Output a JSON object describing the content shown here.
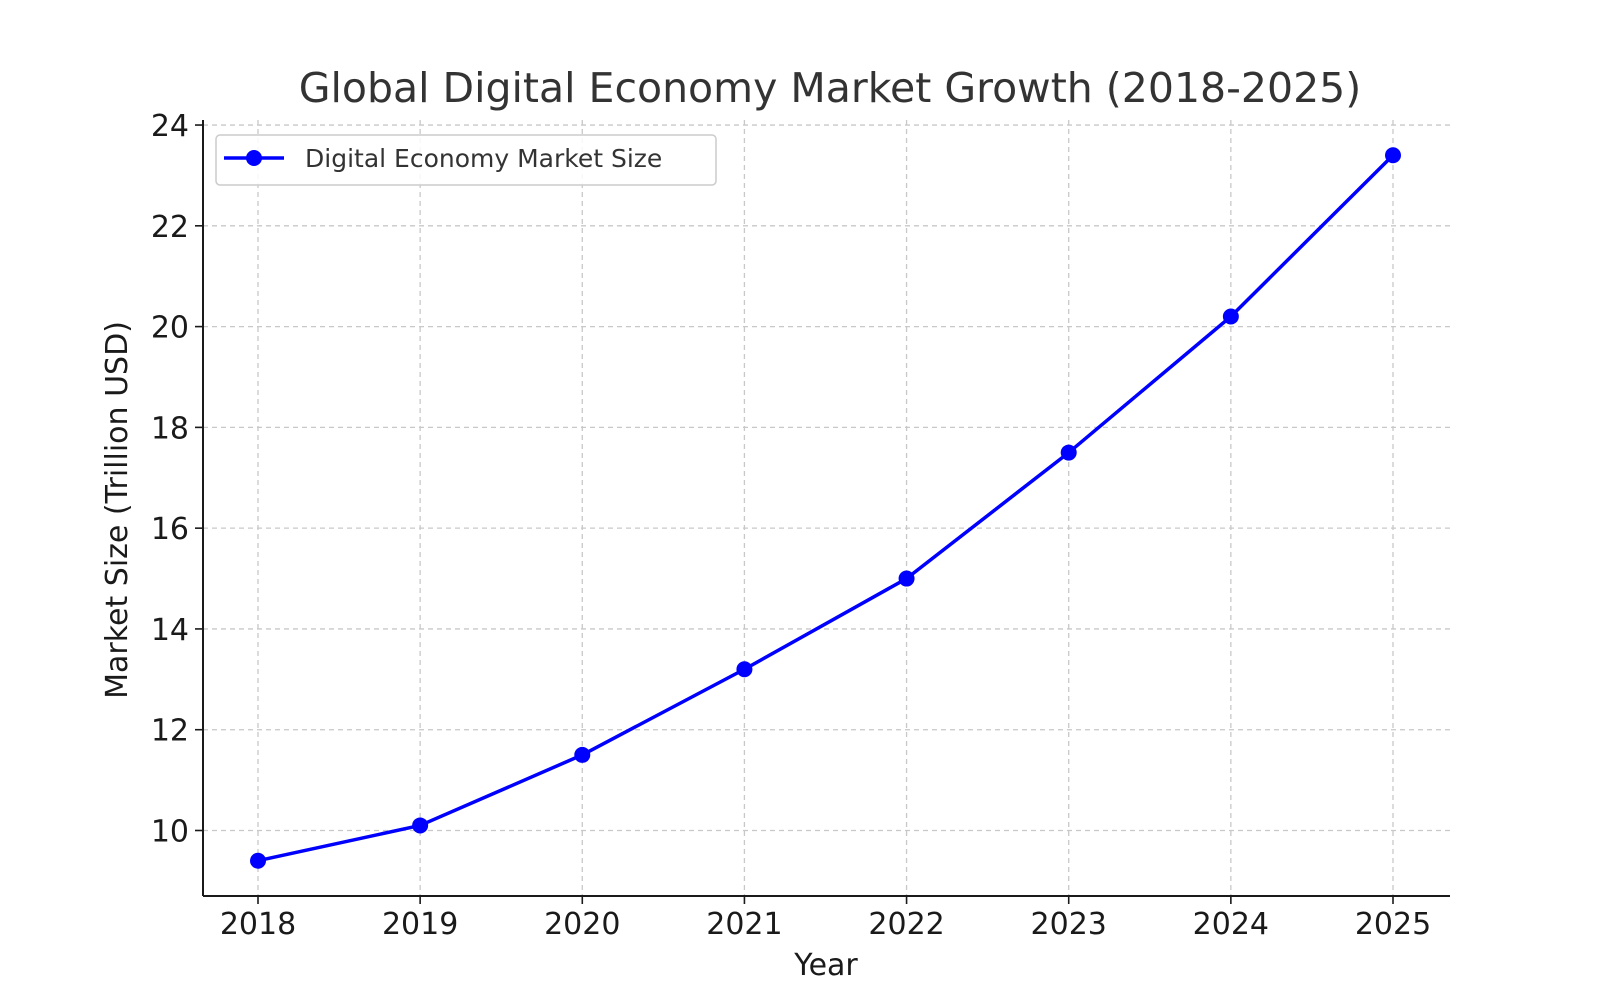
{
  "chart_data": {
    "type": "line",
    "title": "Global Digital Economy Market Growth (2018-2025)",
    "xlabel": "Year",
    "ylabel": "Market Size (Trillion USD)",
    "categories": [
      "2018",
      "2019",
      "2020",
      "2021",
      "2022",
      "2023",
      "2024",
      "2025"
    ],
    "series": [
      {
        "name": "Digital Economy Market Size",
        "color": "#0000ff",
        "marker": "circle",
        "values": [
          9.4,
          10.1,
          11.5,
          13.2,
          15.0,
          17.5,
          20.2,
          23.4
        ]
      }
    ],
    "ylim": [
      8.7,
      24.1
    ],
    "yticks": [
      10,
      12,
      14,
      16,
      18,
      20,
      22,
      24
    ],
    "grid": true,
    "legend_position": "top-left"
  }
}
